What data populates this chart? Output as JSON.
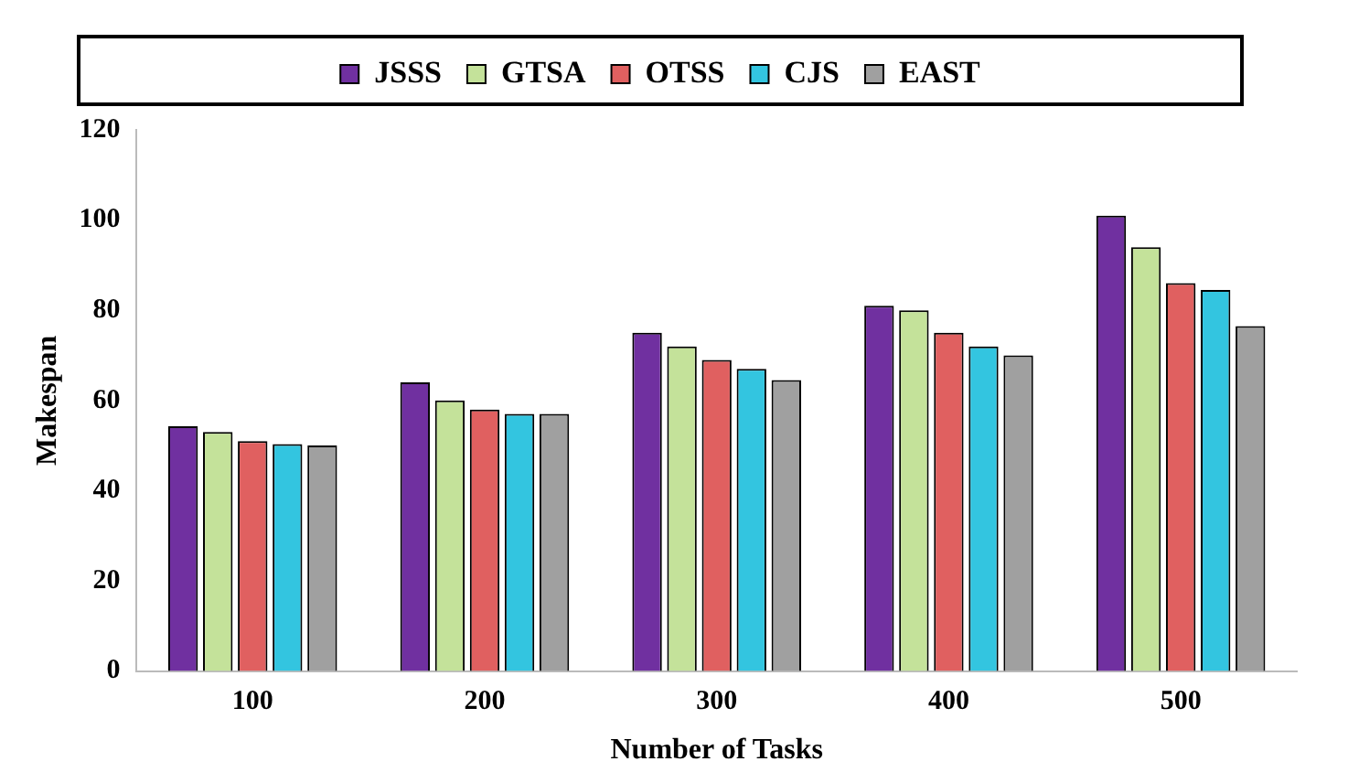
{
  "chart_data": {
    "type": "bar",
    "xlabel": "Number of Tasks",
    "ylabel": "Makespan",
    "categories": [
      "100",
      "200",
      "300",
      "400",
      "500"
    ],
    "series": [
      {
        "name": "JSSS",
        "color": "#7030a0",
        "values": [
          54.3,
          64,
          75,
          81,
          101
        ]
      },
      {
        "name": "GTSA",
        "color": "#c4e29a",
        "values": [
          53,
          60,
          72,
          80,
          94
        ]
      },
      {
        "name": "OTSS",
        "color": "#e06060",
        "values": [
          51,
          58,
          69,
          75,
          86
        ]
      },
      {
        "name": "CJS",
        "color": "#33c5e0",
        "values": [
          50.3,
          57,
          67,
          72,
          84.5
        ]
      },
      {
        "name": "EAST",
        "color": "#a0a0a0",
        "values": [
          50,
          57,
          64.5,
          70,
          76.5
        ]
      }
    ],
    "ylim": [
      0,
      120
    ],
    "yticks": [
      0,
      20,
      40,
      60,
      80,
      100,
      120
    ],
    "grid": false,
    "legend": "top"
  }
}
